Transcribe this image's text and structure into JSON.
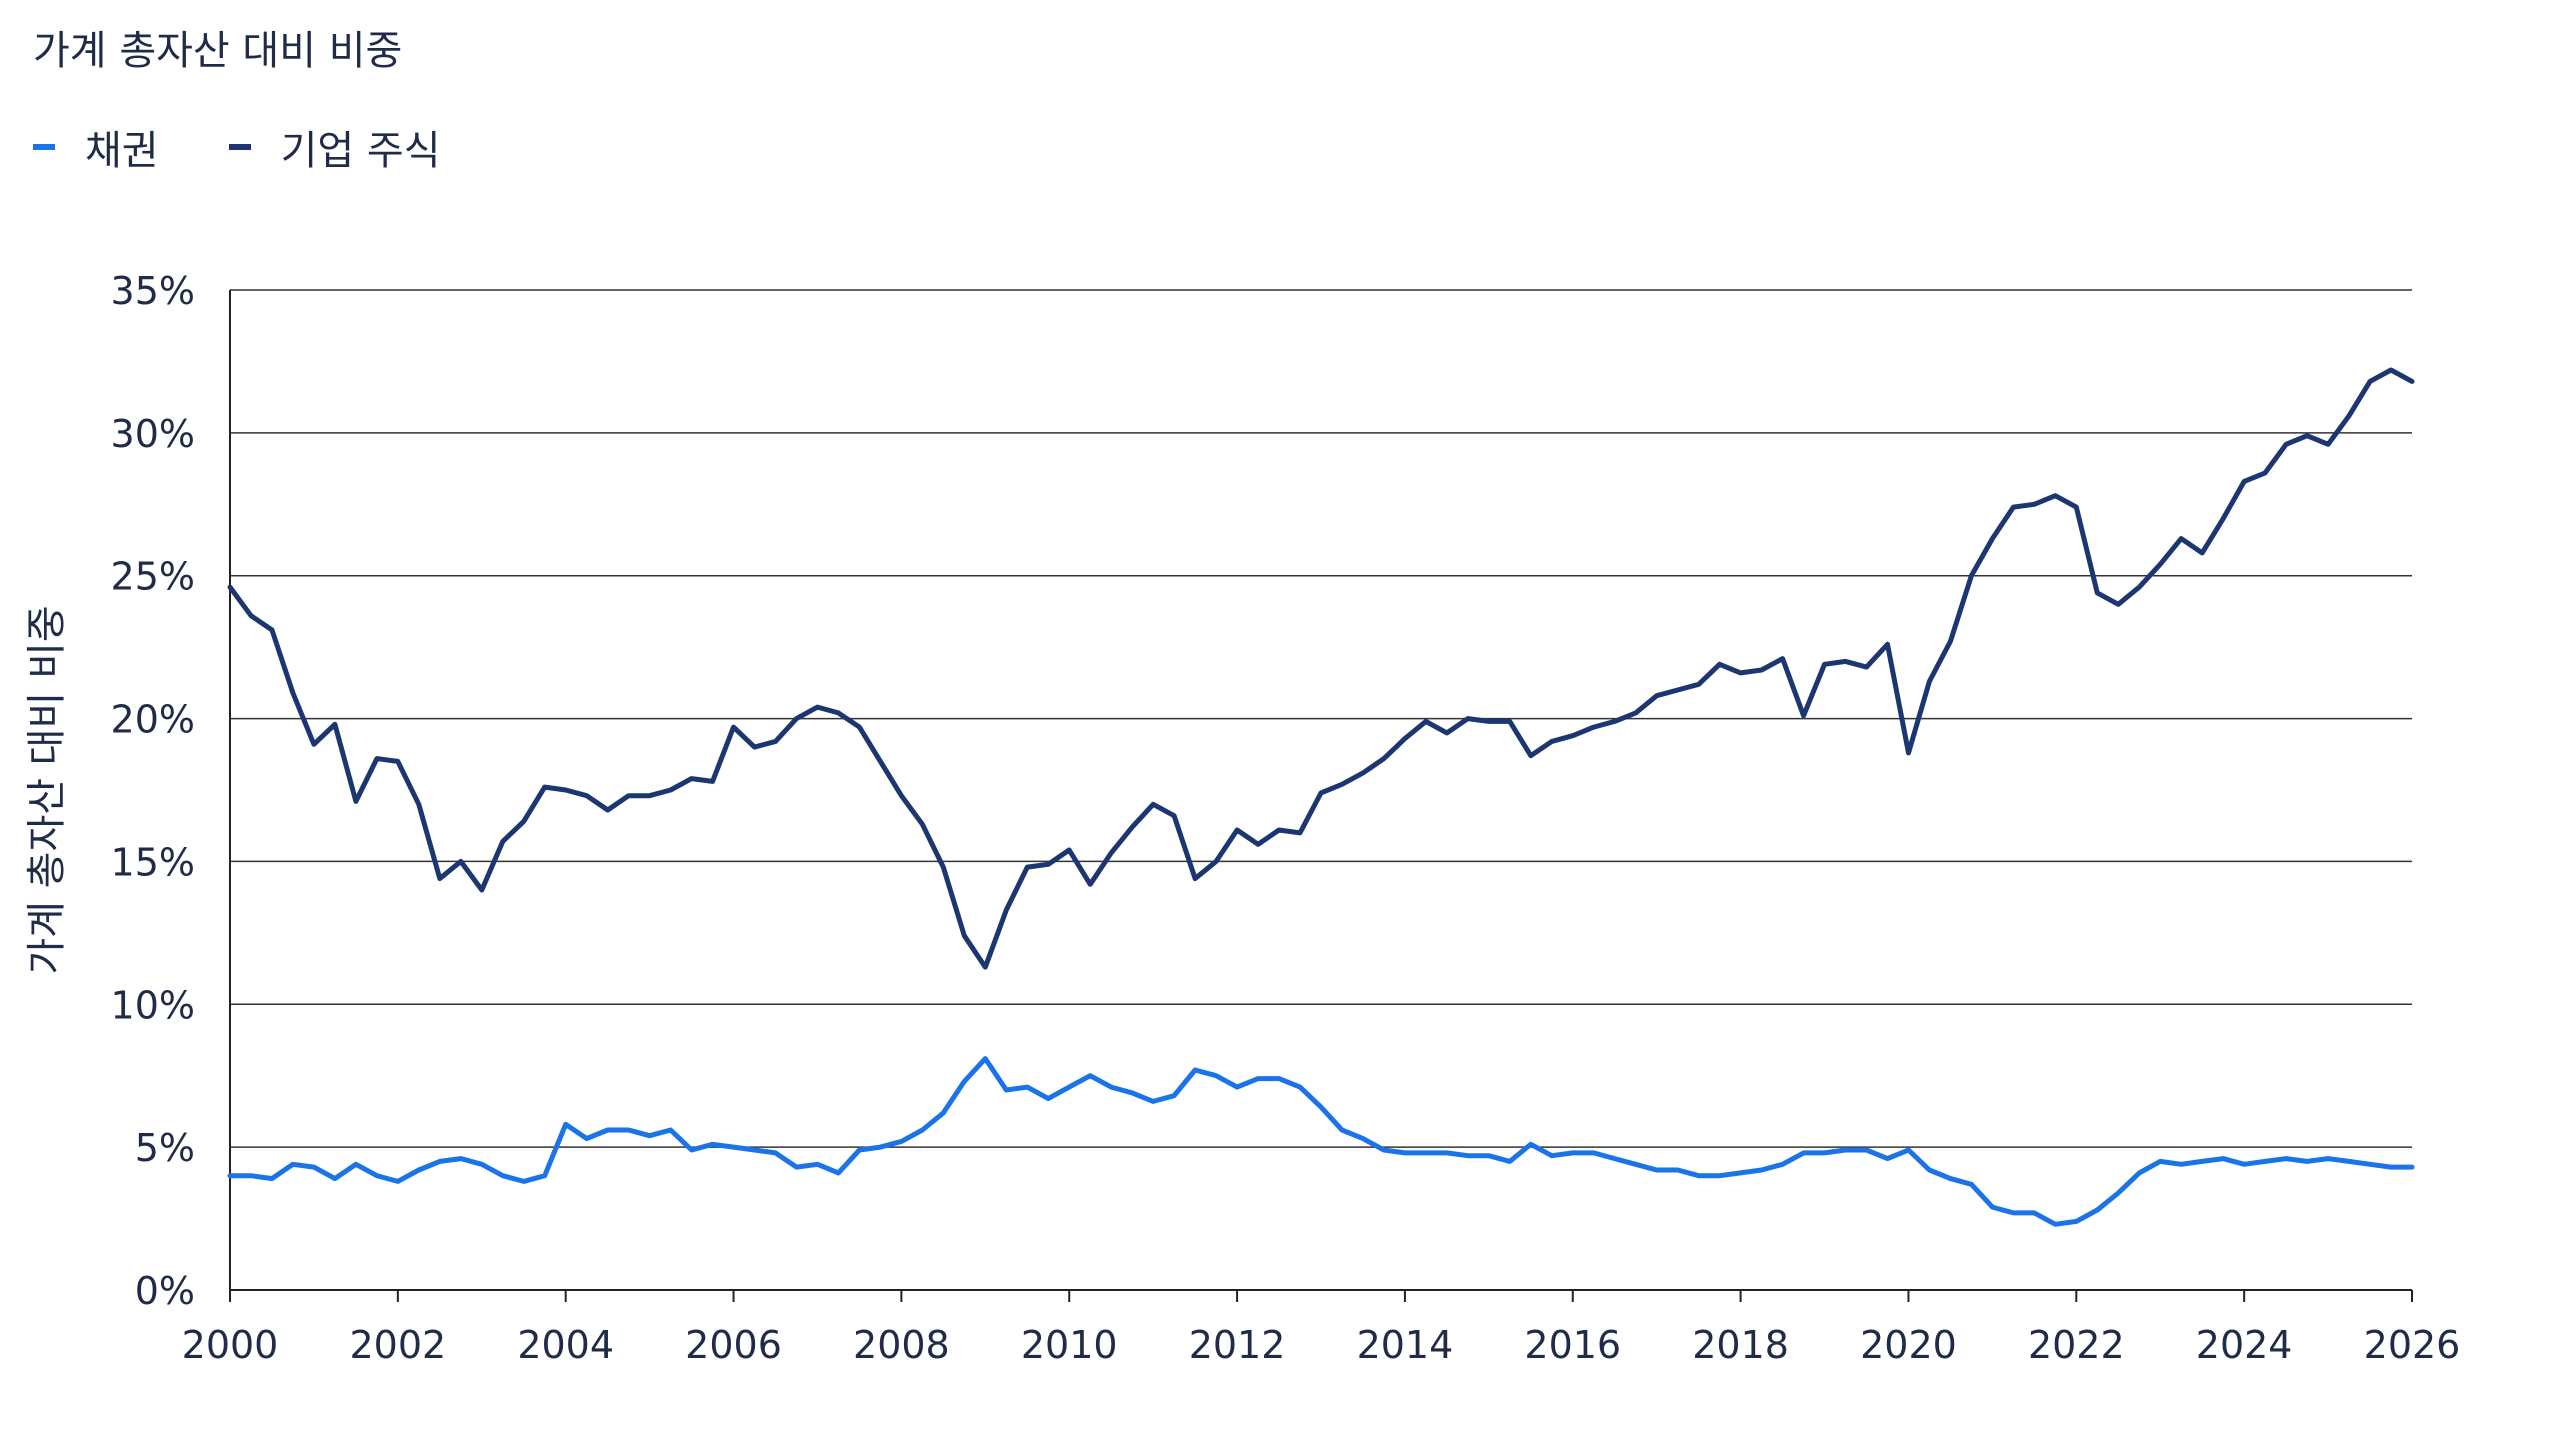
{
  "chart_data": {
    "type": "line",
    "title": "가계 총자산 대비 비중",
    "ylabel": "가계 총자산 대비 비중",
    "xlabel": "",
    "xlim": [
      2000,
      2026
    ],
    "ylim": [
      0,
      35
    ],
    "x_ticks": [
      "2000",
      "2002",
      "2004",
      "2006",
      "2008",
      "2010",
      "2012",
      "2014",
      "2016",
      "2018",
      "2020",
      "2022",
      "2024",
      "2026"
    ],
    "y_ticks": [
      "0%",
      "5%",
      "10%",
      "15%",
      "20%",
      "25%",
      "30%",
      "35%"
    ],
    "grid": "horizontal",
    "legend_position": "top-left",
    "series": [
      {
        "name": "채권",
        "color": "#1a73e8",
        "x": [
          2000.0,
          2000.25,
          2000.5,
          2000.75,
          2001.0,
          2001.25,
          2001.5,
          2001.75,
          2002.0,
          2002.25,
          2002.5,
          2002.75,
          2003.0,
          2003.25,
          2003.5,
          2003.75,
          2004.0,
          2004.25,
          2004.5,
          2004.75,
          2005.0,
          2005.25,
          2005.5,
          2005.75,
          2006.0,
          2006.25,
          2006.5,
          2006.75,
          2007.0,
          2007.25,
          2007.5,
          2007.75,
          2008.0,
          2008.25,
          2008.5,
          2008.75,
          2009.0,
          2009.25,
          2009.5,
          2009.75,
          2010.0,
          2010.25,
          2010.5,
          2010.75,
          2011.0,
          2011.25,
          2011.5,
          2011.75,
          2012.0,
          2012.25,
          2012.5,
          2012.75,
          2013.0,
          2013.25,
          2013.5,
          2013.75,
          2014.0,
          2014.25,
          2014.5,
          2014.75,
          2015.0,
          2015.25,
          2015.5,
          2015.75,
          2016.0,
          2016.25,
          2016.5,
          2016.75,
          2017.0,
          2017.25,
          2017.5,
          2017.75,
          2018.0,
          2018.25,
          2018.5,
          2018.75,
          2019.0,
          2019.25,
          2019.5,
          2019.75,
          2020.0,
          2020.25,
          2020.5,
          2020.75,
          2021.0,
          2021.25,
          2021.5,
          2021.75,
          2022.0,
          2022.25,
          2022.5,
          2022.75,
          2023.0,
          2023.25,
          2023.5,
          2023.75,
          2024.0,
          2024.25,
          2024.5,
          2024.75,
          2025.0,
          2025.25,
          2025.5,
          2025.75,
          2026.0
        ],
        "values": [
          4.0,
          4.0,
          3.9,
          4.4,
          4.3,
          3.9,
          4.4,
          4.0,
          3.8,
          4.2,
          4.5,
          4.6,
          4.4,
          4.0,
          3.8,
          4.0,
          5.8,
          5.3,
          5.6,
          5.6,
          5.4,
          5.6,
          4.9,
          5.1,
          5.0,
          4.9,
          4.8,
          4.3,
          4.4,
          4.1,
          4.9,
          5.0,
          5.2,
          5.6,
          6.2,
          7.3,
          8.1,
          7.0,
          7.1,
          6.7,
          7.1,
          7.5,
          7.1,
          6.9,
          6.6,
          6.8,
          7.7,
          7.5,
          7.1,
          7.4,
          7.4,
          7.1,
          6.4,
          5.6,
          5.3,
          4.9,
          4.8,
          4.8,
          4.8,
          4.7,
          4.7,
          4.5,
          5.1,
          4.7,
          4.8,
          4.8,
          4.6,
          4.4,
          4.2,
          4.2,
          4.0,
          4.0,
          4.1,
          4.2,
          4.4,
          4.8,
          4.8,
          4.9,
          4.9,
          4.6,
          4.9,
          4.2,
          3.9,
          3.7,
          2.9,
          2.7,
          2.7,
          2.3,
          2.4,
          2.8,
          3.4,
          4.1,
          4.5,
          4.4,
          4.5,
          4.6,
          4.4,
          4.5,
          4.6,
          4.5,
          4.6,
          4.5,
          4.4,
          4.3,
          4.3
        ]
      },
      {
        "name": "기업 주식",
        "color": "#1b3670",
        "x": [
          2000.0,
          2000.25,
          2000.5,
          2000.75,
          2001.0,
          2001.25,
          2001.5,
          2001.75,
          2002.0,
          2002.25,
          2002.5,
          2002.75,
          2003.0,
          2003.25,
          2003.5,
          2003.75,
          2004.0,
          2004.25,
          2004.5,
          2004.75,
          2005.0,
          2005.25,
          2005.5,
          2005.75,
          2006.0,
          2006.25,
          2006.5,
          2006.75,
          2007.0,
          2007.25,
          2007.5,
          2007.75,
          2008.0,
          2008.25,
          2008.5,
          2008.75,
          2009.0,
          2009.25,
          2009.5,
          2009.75,
          2010.0,
          2010.25,
          2010.5,
          2010.75,
          2011.0,
          2011.25,
          2011.5,
          2011.75,
          2012.0,
          2012.25,
          2012.5,
          2012.75,
          2013.0,
          2013.25,
          2013.5,
          2013.75,
          2014.0,
          2014.25,
          2014.5,
          2014.75,
          2015.0,
          2015.25,
          2015.5,
          2015.75,
          2016.0,
          2016.25,
          2016.5,
          2016.75,
          2017.0,
          2017.25,
          2017.5,
          2017.75,
          2018.0,
          2018.25,
          2018.5,
          2018.75,
          2019.0,
          2019.25,
          2019.5,
          2019.75,
          2020.0,
          2020.25,
          2020.5,
          2020.75,
          2021.0,
          2021.25,
          2021.5,
          2021.75,
          2022.0,
          2022.25,
          2022.5,
          2022.75,
          2023.0,
          2023.25,
          2023.5,
          2023.75,
          2024.0,
          2024.25,
          2024.5,
          2024.75,
          2025.0,
          2025.25,
          2025.5,
          2025.75,
          2026.0
        ],
        "values": [
          24.6,
          23.6,
          23.1,
          20.9,
          19.1,
          19.8,
          17.1,
          18.6,
          18.5,
          17.0,
          14.4,
          15.0,
          14.0,
          15.7,
          16.4,
          17.6,
          17.5,
          17.3,
          16.8,
          17.3,
          17.3,
          17.5,
          17.9,
          17.8,
          19.7,
          19.0,
          19.2,
          20.0,
          20.4,
          20.2,
          19.7,
          18.5,
          17.3,
          16.3,
          14.8,
          12.4,
          11.3,
          13.3,
          14.8,
          14.9,
          15.4,
          14.2,
          15.3,
          16.2,
          17.0,
          16.6,
          14.4,
          15.0,
          16.1,
          15.6,
          16.1,
          16.0,
          17.4,
          17.7,
          18.1,
          18.6,
          19.3,
          19.9,
          19.5,
          20.0,
          19.9,
          19.9,
          18.7,
          19.2,
          19.4,
          19.7,
          19.9,
          20.2,
          20.8,
          21.0,
          21.2,
          21.9,
          21.6,
          21.7,
          22.1,
          20.1,
          21.9,
          22.0,
          21.8,
          22.6,
          18.8,
          21.3,
          22.7,
          25.0,
          26.3,
          27.4,
          27.5,
          27.8,
          27.4,
          24.4,
          24.0,
          24.6,
          25.4,
          26.3,
          25.8,
          27.0,
          28.3,
          28.6,
          29.6,
          29.9,
          29.6,
          30.6,
          31.8,
          32.2,
          31.8
        ]
      }
    ]
  }
}
